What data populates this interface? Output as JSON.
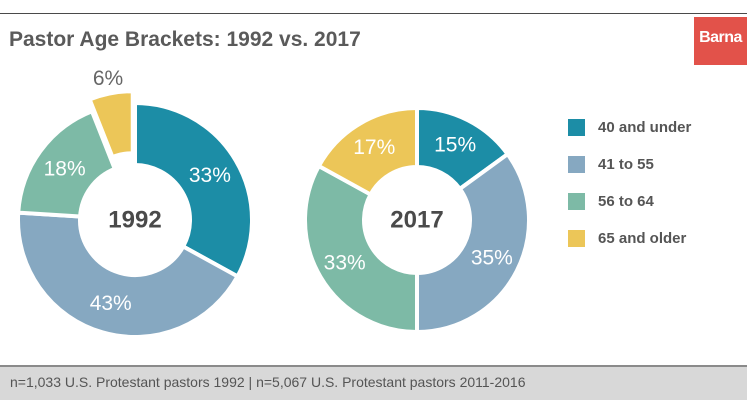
{
  "header": {
    "title": "Pastor Age Brackets: 1992 vs. 2017",
    "logo_text": "Barna"
  },
  "footer": {
    "note": "n=1,033 U.S. Protestant pastors 1992  |  n=5,067 U.S. Protestant pastors 2011-2016"
  },
  "colors": {
    "40 and under": "#1c8da6",
    "41 to 55": "#86a8c1",
    "56 to 64": "#7dbaa6",
    "65 and older": "#ecc658",
    "logo": "#e2524a"
  },
  "chart_data": [
    {
      "type": "pie",
      "center_label": "1992",
      "categories": [
        "40 and under",
        "41 to 55",
        "56 to 64",
        "65 and older"
      ],
      "values": [
        33,
        43,
        18,
        6
      ],
      "data_labels": [
        "33%",
        "43%",
        "18%",
        "6%"
      ]
    },
    {
      "type": "pie",
      "center_label": "2017",
      "categories": [
        "40 and under",
        "41 to 55",
        "56 to 64",
        "65 and older"
      ],
      "values": [
        15,
        35,
        33,
        17
      ],
      "data_labels": [
        "15%",
        "35%",
        "33%",
        "17%"
      ]
    }
  ],
  "legend": {
    "placement": "right",
    "items": [
      "40 and under",
      "41 to 55",
      "56 to 64",
      "65 and older"
    ]
  }
}
